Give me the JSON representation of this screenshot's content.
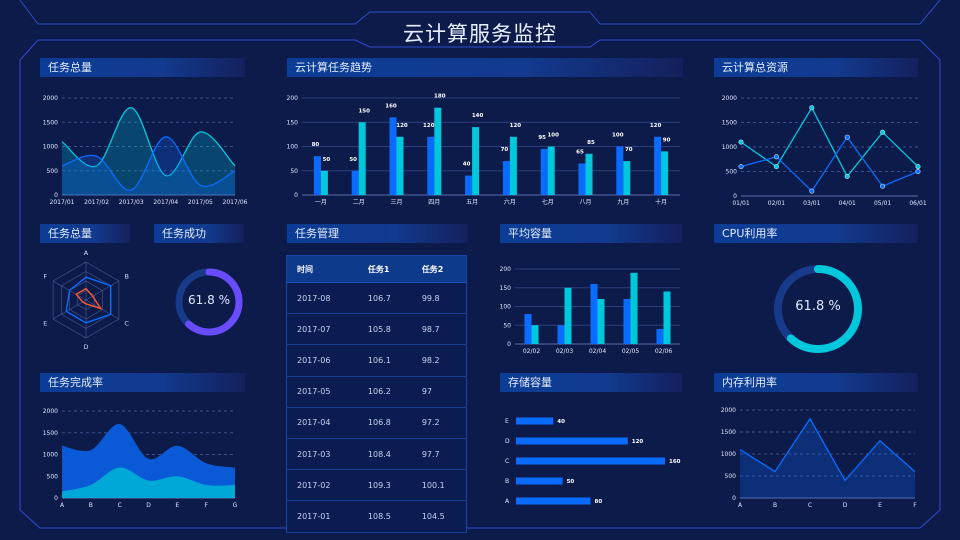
{
  "header": {
    "title": "云计算服务监控"
  },
  "panels": {
    "task_total_trend": "任务总量",
    "cloud_task_trend": "云计算任务趋势",
    "cloud_resources": "云计算总资源",
    "task_total_radar": "任务总量",
    "task_success": "任务成功",
    "task_management": "任务管理",
    "avg_capacity": "平均容量",
    "cpu_usage": "CPU利用率",
    "task_completion": "任务完成率",
    "storage_capacity": "存储容量",
    "memory_usage": "内存利用率"
  },
  "colors": {
    "background": "#0d1b4b",
    "blue": "#0a6cff",
    "cyan": "#00c8dc",
    "purple": "#6a4cff",
    "orange": "#ff5a2a"
  },
  "task_success": {
    "value_label": "61.8 %",
    "percent": 61.8
  },
  "cpu_usage": {
    "value_label": "61.8 %",
    "percent": 61.8
  },
  "table": {
    "columns": [
      "时间",
      "任务1",
      "任务2"
    ],
    "rows": [
      [
        "2017-08",
        "106.7",
        "99.8"
      ],
      [
        "2017-07",
        "105.8",
        "98.7"
      ],
      [
        "2017-06",
        "106.1",
        "98.2"
      ],
      [
        "2017-05",
        "106.2",
        "97"
      ],
      [
        "2017-04",
        "106.8",
        "97.2"
      ],
      [
        "2017-03",
        "108.4",
        "97.7"
      ],
      [
        "2017-02",
        "109.3",
        "100.1"
      ],
      [
        "2017-01",
        "108.5",
        "104.5"
      ]
    ]
  },
  "chart_data": [
    {
      "id": "task_total_trend",
      "type": "area",
      "smooth": true,
      "categories": [
        "2017/01",
        "2017/02",
        "2017/03",
        "2017/04",
        "2017/05",
        "2017/06"
      ],
      "ylim": [
        0,
        2000
      ],
      "yticks": [
        0,
        500,
        1000,
        1500,
        2000
      ],
      "grid": "dashed",
      "series": [
        {
          "values": [
            1100,
            600,
            1800,
            400,
            1300,
            600
          ],
          "color": "#00c8dc"
        },
        {
          "values": [
            600,
            800,
            100,
            1200,
            200,
            500
          ],
          "color": "#0a6cff"
        }
      ]
    },
    {
      "id": "cloud_task_trend",
      "type": "bar",
      "categories": [
        "一月",
        "二月",
        "三月",
        "四月",
        "五月",
        "六月",
        "七月",
        "八月",
        "九月",
        "十月"
      ],
      "ylim": [
        0,
        200
      ],
      "yticks": [
        0,
        50,
        100,
        150,
        200
      ],
      "grid": "solid",
      "data_labels": true,
      "series": [
        {
          "values": [
            80,
            50,
            160,
            120,
            40,
            70,
            95,
            65,
            100,
            120
          ],
          "color": "#0a6cff"
        },
        {
          "values": [
            50,
            150,
            120,
            180,
            140,
            120,
            100,
            85,
            70,
            90
          ],
          "color": "#00c8dc"
        }
      ]
    },
    {
      "id": "cloud_resources",
      "type": "line",
      "markers": true,
      "categories": [
        "01/01",
        "02/01",
        "03/01",
        "04/01",
        "05/01",
        "06/01"
      ],
      "ylim": [
        0,
        2000
      ],
      "yticks": [
        0,
        500,
        1000,
        1500,
        2000
      ],
      "grid": "dashed",
      "series": [
        {
          "values": [
            1100,
            600,
            1800,
            400,
            1300,
            600
          ],
          "color": "#00c8dc"
        },
        {
          "values": [
            600,
            800,
            100,
            1200,
            200,
            500
          ],
          "color": "#0a6cff"
        }
      ]
    },
    {
      "id": "task_total_radar",
      "type": "radar",
      "indicators": [
        "A",
        "B",
        "C",
        "D",
        "E",
        "F"
      ],
      "max": 100,
      "series": [
        {
          "values": [
            60,
            75,
            75,
            60,
            60,
            50
          ],
          "color": "#0a6cff"
        },
        {
          "values": [
            30,
            20,
            45,
            10,
            10,
            30
          ],
          "color": "#ff5a2a"
        }
      ]
    },
    {
      "id": "avg_capacity",
      "type": "bar",
      "categories": [
        "02/02",
        "02/03",
        "02/04",
        "02/05",
        "02/06"
      ],
      "ylim": [
        0,
        200
      ],
      "yticks": [
        0,
        50,
        100,
        150,
        200
      ],
      "grid": "solid",
      "series": [
        {
          "values": [
            80,
            50,
            160,
            120,
            40
          ],
          "color": "#0a6cff"
        },
        {
          "values": [
            50,
            150,
            120,
            190,
            140
          ],
          "color": "#00c8dc"
        }
      ]
    },
    {
      "id": "task_completion",
      "type": "area",
      "stacked": true,
      "smooth": true,
      "categories": [
        "A",
        "B",
        "C",
        "D",
        "E",
        "F",
        "G"
      ],
      "ylim": [
        0,
        2000
      ],
      "yticks": [
        0,
        500,
        1000,
        1500,
        2000
      ],
      "grid": "dashed",
      "series": [
        {
          "values": [
            150,
            300,
            700,
            400,
            500,
            300,
            300
          ],
          "color": "#00a8d8"
        },
        {
          "values": [
            1050,
            800,
            1000,
            500,
            700,
            500,
            400
          ],
          "color": "#0a5ad8"
        }
      ]
    },
    {
      "id": "storage_capacity",
      "type": "hbar",
      "categories": [
        "A",
        "B",
        "C",
        "D",
        "E"
      ],
      "values": [
        80,
        50,
        160,
        120,
        40
      ],
      "xlim": [
        0,
        160
      ],
      "color": "#0a6cff",
      "data_labels": true
    },
    {
      "id": "memory_usage",
      "type": "area",
      "categories": [
        "A",
        "B",
        "C",
        "D",
        "E",
        "F"
      ],
      "ylim": [
        0,
        2000
      ],
      "yticks": [
        0,
        500,
        1000,
        1500,
        2000
      ],
      "grid": "dashed",
      "series": [
        {
          "values": [
            1100,
            600,
            1800,
            400,
            1300,
            600
          ],
          "color": "#0a6cff"
        }
      ]
    }
  ]
}
